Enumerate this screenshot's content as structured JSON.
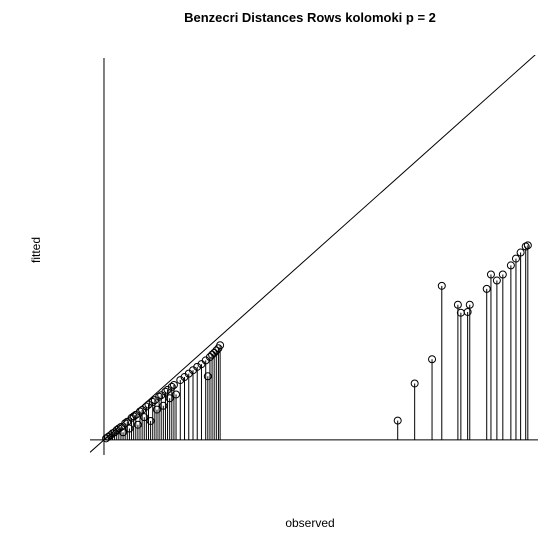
{
  "chart_data": {
    "type": "scatter",
    "title": "Benzecri Distances Rows kolomoki p = 2",
    "x_label": "observed",
    "y_label": "fitted",
    "xlim": [
      -0.033,
      1.024
    ],
    "ylim": [
      -0.04,
      1.017
    ],
    "color": "#000000",
    "x": [
      0.005,
      0.01,
      0.015,
      0.02,
      0.025,
      0.03,
      0.035,
      0.04,
      0.045,
      0.05,
      0.055,
      0.06,
      0.065,
      0.07,
      0.075,
      0.08,
      0.085,
      0.09,
      0.095,
      0.1,
      0.105,
      0.11,
      0.115,
      0.12,
      0.125,
      0.13,
      0.135,
      0.14,
      0.145,
      0.15,
      0.155,
      0.16,
      0.165,
      0.17,
      0.18,
      0.19,
      0.2,
      0.21,
      0.22,
      0.23,
      0.24,
      0.245,
      0.25,
      0.255,
      0.26,
      0.265,
      0.27,
      0.274,
      0.693,
      0.733,
      0.774,
      0.797,
      0.835,
      0.842,
      0.863,
      0.858,
      0.903,
      0.913,
      0.927,
      0.941,
      0.96,
      0.972,
      0.983,
      0.995,
      1.0
    ],
    "values": [
      0.004,
      0.008,
      0.012,
      0.017,
      0.02,
      0.026,
      0.03,
      0.034,
      0.02,
      0.044,
      0.048,
      0.03,
      0.058,
      0.062,
      0.066,
      0.04,
      0.075,
      0.079,
      0.06,
      0.088,
      0.093,
      0.05,
      0.1,
      0.105,
      0.08,
      0.114,
      0.118,
      0.09,
      0.127,
      0.132,
      0.11,
      0.14,
      0.145,
      0.12,
      0.158,
      0.166,
      0.175,
      0.184,
      0.193,
      0.2,
      0.21,
      0.168,
      0.219,
      0.225,
      0.23,
      0.236,
      0.242,
      0.25,
      0.051,
      0.149,
      0.213,
      0.407,
      0.357,
      0.336,
      0.357,
      0.338,
      0.399,
      0.437,
      0.421,
      0.437,
      0.461,
      0.479,
      0.495,
      0.511,
      0.514
    ]
  }
}
